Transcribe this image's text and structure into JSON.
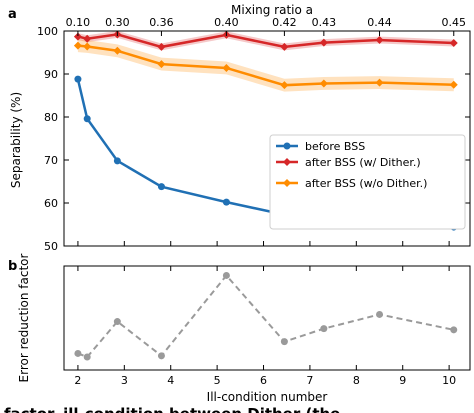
{
  "panels": {
    "a": "a",
    "b": "b"
  },
  "caption": "factor, ill-condition between Dither (the",
  "colors": {
    "before": "#2070b4",
    "after_dither": "#d62728",
    "after_nodither": "#ff8c00",
    "error_factor": "#9a9a9a",
    "frame": "#000000"
  },
  "chart_data": [
    {
      "type": "line",
      "panel": "a",
      "x": [
        2.0,
        2.2,
        2.85,
        3.8,
        5.2,
        6.45,
        7.3,
        8.5,
        10.1
      ],
      "x_axis": {
        "label": "",
        "range": [
          1.7,
          10.45
        ],
        "ticks": [],
        "tick_labels": []
      },
      "top_axis": {
        "label": "Mixing ratio a",
        "ticks": [
          2.0,
          2.85,
          3.8,
          5.2,
          6.45,
          7.3,
          8.5,
          10.1
        ],
        "tick_labels": [
          "0.10",
          "0.30",
          "0.36",
          "0.40",
          "0.42",
          "0.43",
          "0.44",
          "0.45"
        ]
      },
      "ylabel": "Separability (%)",
      "ylim": [
        50,
        100
      ],
      "yticks": [
        50,
        60,
        70,
        80,
        90,
        100
      ],
      "series": [
        {
          "name": "before BSS",
          "color_key": "before",
          "values": [
            88.8,
            79.6,
            69.8,
            63.8,
            60.2,
            57.3,
            56.5,
            55.5,
            54.4
          ],
          "band": 0
        },
        {
          "name": "after BSS (w/ Dither.)",
          "color_key": "after_dither",
          "values": [
            98.7,
            98.2,
            99.2,
            96.3,
            99.1,
            96.3,
            97.3,
            97.9,
            97.2
          ],
          "band": 0.8
        },
        {
          "name": "after BSS (w/o Dither.)",
          "color_key": "after_nodither",
          "values": [
            96.6,
            96.4,
            95.4,
            92.3,
            91.4,
            87.4,
            87.8,
            88.0,
            87.5
          ],
          "band": 1.5
        }
      ],
      "legend": "center-right",
      "grid": false
    },
    {
      "type": "line",
      "panel": "b",
      "x": [
        2.0,
        2.2,
        2.85,
        3.8,
        5.2,
        6.45,
        7.3,
        8.5,
        10.1
      ],
      "xlabel": "Ill-condition number",
      "xlim": [
        1.7,
        10.45
      ],
      "xticks": [
        2,
        3,
        4,
        5,
        6,
        7,
        8,
        9,
        10
      ],
      "ylabel": "Error reduction factor",
      "series": [
        {
          "name": "",
          "color_key": "error_factor",
          "values": [
            2.4,
            2.1,
            5.1,
            2.2,
            9.0,
            3.4,
            4.5,
            5.7,
            4.4
          ],
          "dashed": true
        }
      ],
      "grid": false
    }
  ]
}
